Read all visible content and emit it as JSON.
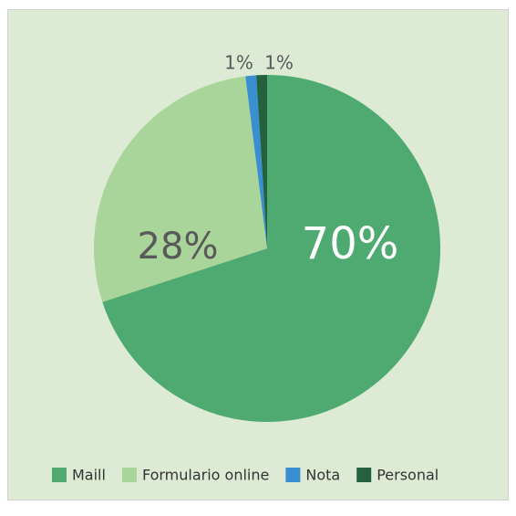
{
  "chart_data": {
    "type": "pie",
    "categories": [
      "Maill",
      "Formulario online",
      "Nota",
      "Personal"
    ],
    "values": [
      70,
      28,
      1,
      1
    ],
    "value_labels": [
      "70%",
      "28%",
      "1%",
      "1%"
    ],
    "colors": [
      "#4faa72",
      "#a9d49a",
      "#3a8fd0",
      "#23613f"
    ],
    "legend": "bottom"
  }
}
